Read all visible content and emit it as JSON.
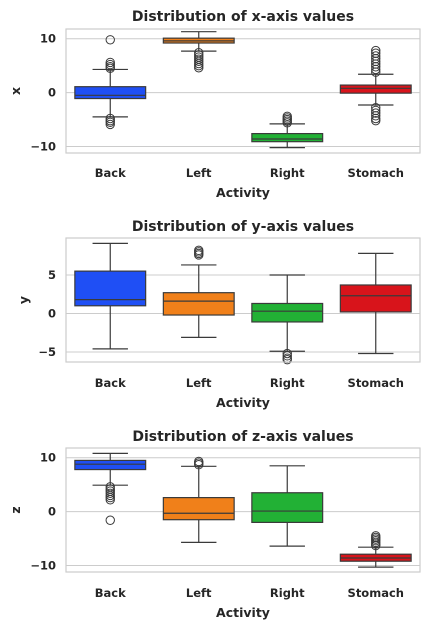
{
  "chart_data": [
    {
      "type": "box",
      "title": "Distribution of x-axis values",
      "xlabel": "Activity",
      "ylabel": "x",
      "ylim": [
        -11.2,
        11.8
      ],
      "yticks": [
        10,
        0,
        -10
      ],
      "grid": true,
      "categories": [
        "Back",
        "Left",
        "Right",
        "Stomach"
      ],
      "colors": [
        "#1f4ff5",
        "#f0801a",
        "#22b135",
        "#d8141b"
      ],
      "boxes": [
        {
          "category": "Back",
          "whislo": -4.5,
          "q1": -1.1,
          "median": -0.5,
          "q3": 1.1,
          "whishi": 4.3,
          "fliers": [
            9.8,
            5.6,
            5.2,
            4.8,
            4.5,
            -4.8,
            -5.2,
            -5.5,
            -5.9
          ]
        },
        {
          "category": "Left",
          "whislo": 7.7,
          "q1": 9.2,
          "median": 9.6,
          "q3": 10.1,
          "whishi": 11.3,
          "fliers": [
            7.4,
            7.0,
            6.6,
            6.2,
            5.8,
            5.4,
            5.0,
            4.6
          ]
        },
        {
          "category": "Right",
          "whislo": -10.2,
          "q1": -9.1,
          "median": -8.6,
          "q3": -7.6,
          "whishi": -5.8,
          "fliers": [
            -5.6,
            -5.3,
            -5.0,
            -4.7,
            -4.4
          ]
        },
        {
          "category": "Stomach",
          "whislo": -2.3,
          "q1": -0.1,
          "median": 0.8,
          "q3": 1.4,
          "whishi": 3.4,
          "fliers": [
            3.8,
            4.3,
            4.8,
            5.3,
            5.8,
            6.3,
            6.8,
            7.3,
            7.8,
            -2.8,
            -3.3,
            -3.8,
            -4.3,
            -4.8,
            -5.2
          ]
        }
      ]
    },
    {
      "type": "box",
      "title": "Distribution of y-axis values",
      "xlabel": "Activity",
      "ylabel": "y",
      "ylim": [
        -6.3,
        9.8
      ],
      "yticks": [
        5,
        0,
        -5
      ],
      "grid": true,
      "categories": [
        "Back",
        "Left",
        "Right",
        "Stomach"
      ],
      "colors": [
        "#1f4ff5",
        "#f0801a",
        "#22b135",
        "#d8141b"
      ],
      "boxes": [
        {
          "category": "Back",
          "whislo": -4.6,
          "q1": 1.0,
          "median": 1.8,
          "q3": 5.5,
          "whishi": 9.1,
          "fliers": []
        },
        {
          "category": "Left",
          "whislo": -3.1,
          "q1": -0.2,
          "median": 1.6,
          "q3": 2.7,
          "whishi": 6.3,
          "fliers": [
            7.6,
            7.8,
            8.0,
            8.2
          ]
        },
        {
          "category": "Right",
          "whislo": -4.9,
          "q1": -1.1,
          "median": 0.3,
          "q3": 1.3,
          "whishi": 5.0,
          "fliers": [
            -5.2,
            -5.5,
            -5.8,
            -6.0
          ]
        },
        {
          "category": "Stomach",
          "whislo": -5.2,
          "q1": 0.2,
          "median": 2.3,
          "q3": 3.7,
          "whishi": 7.8,
          "fliers": []
        }
      ]
    },
    {
      "type": "box",
      "title": "Distribution of z-axis values",
      "xlabel": "Activity",
      "ylabel": "z",
      "ylim": [
        -11.2,
        11.8
      ],
      "yticks": [
        10,
        0,
        -10
      ],
      "grid": true,
      "categories": [
        "Back",
        "Left",
        "Right",
        "Stomach"
      ],
      "colors": [
        "#1f4ff5",
        "#f0801a",
        "#22b135",
        "#d8141b"
      ],
      "boxes": [
        {
          "category": "Back",
          "whislo": 4.9,
          "q1": 7.8,
          "median": 8.8,
          "q3": 9.5,
          "whishi": 10.8,
          "fliers": [
            4.6,
            4.2,
            3.8,
            3.4,
            3.0,
            2.6,
            2.2,
            -1.6
          ]
        },
        {
          "category": "Left",
          "whislo": -5.7,
          "q1": -1.5,
          "median": -0.3,
          "q3": 2.6,
          "whishi": 8.4,
          "fliers": [
            8.7,
            9.0,
            9.3
          ]
        },
        {
          "category": "Right",
          "whislo": -6.4,
          "q1": -2.0,
          "median": 0.1,
          "q3": 3.5,
          "whishi": 8.5,
          "fliers": []
        },
        {
          "category": "Stomach",
          "whislo": -10.3,
          "q1": -9.2,
          "median": -8.6,
          "q3": -7.9,
          "whishi": -6.6,
          "fliers": [
            -6.3,
            -6.0,
            -5.7,
            -5.4,
            -5.1,
            -4.8,
            -4.5
          ]
        }
      ]
    }
  ]
}
